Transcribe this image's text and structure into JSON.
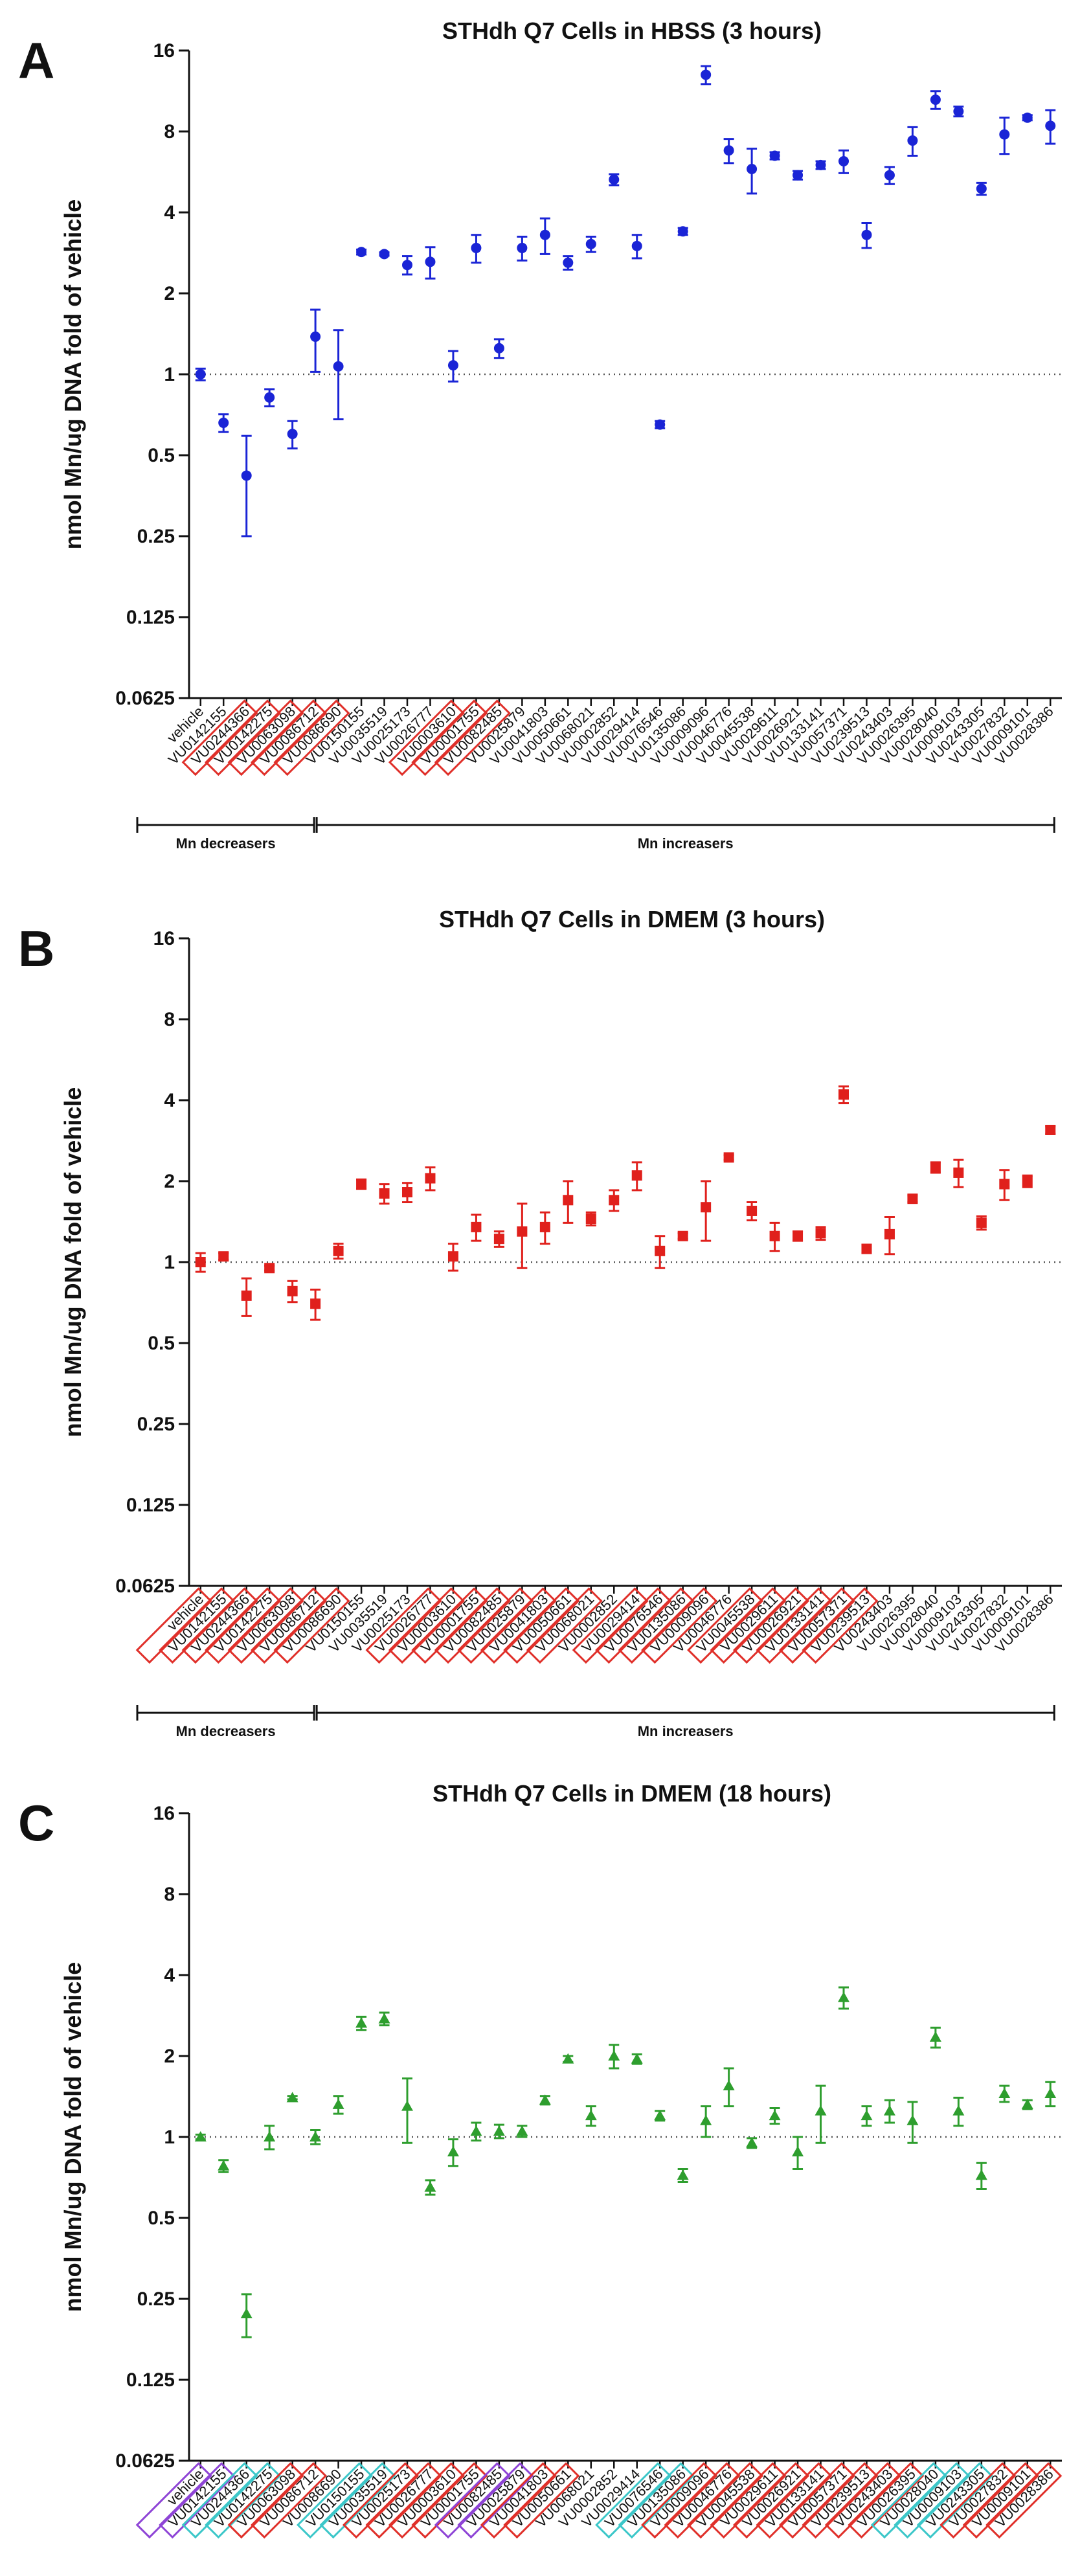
{
  "figure_letters": [
    "A",
    "B",
    "C"
  ],
  "shared": {
    "ylabel": "nmol Mn/ug DNA fold of vehicle",
    "yticks": [
      0.0625,
      0.125,
      0.25,
      0.5,
      1,
      2,
      4,
      8,
      16
    ],
    "ytick_labels": [
      "0.0625",
      "0.125",
      "0.25",
      "0.5",
      "1",
      "2",
      "4",
      "8",
      "16"
    ],
    "categories": [
      "vehicle",
      "VU0142155",
      "VU0244366",
      "VU0142275",
      "VU0063098",
      "VU0086712",
      "VU0086690",
      "VU0150155",
      "VU0035519",
      "VU0025173",
      "VU0026777",
      "VU0003610",
      "VU0001755",
      "VU0082485",
      "VU0025879",
      "VU0041803",
      "VU0050661",
      "VU0068021",
      "VU0002852",
      "VU0029414",
      "VU0076546",
      "VU0135086",
      "VU0009096",
      "VU0046776",
      "VU0045538",
      "VU0029611",
      "VU0026921",
      "VU0133141",
      "VU0057371",
      "VU0239513",
      "VU0243403",
      "VU0026395",
      "VU0028040",
      "VU0009103",
      "VU0243305",
      "VU0027832",
      "VU0009101",
      "VU0028386"
    ],
    "groups": [
      {
        "label": "Mn decreasers",
        "start": 0,
        "end": 5
      },
      {
        "label": "Mn increasers",
        "start": 5,
        "end": 37
      }
    ],
    "reference_line": 1,
    "highlight_colors": {
      "red": "#e0302a",
      "purple": "#8e44d6",
      "cyan": "#3cc7c9"
    }
  },
  "chart_data": [
    {
      "type": "scatter",
      "panel": "A",
      "title": "STHdh Q7 Cells in HBSS (3 hours)",
      "color": "#1a24d6",
      "marker": "circle",
      "yscale": "log2",
      "ylim": [
        0.0625,
        16
      ],
      "values": [
        1.0,
        0.66,
        0.42,
        0.82,
        0.6,
        1.38,
        1.07,
        2.85,
        2.8,
        2.55,
        2.62,
        1.08,
        2.95,
        1.25,
        2.95,
        3.3,
        2.6,
        3.05,
        5.3,
        3.0,
        0.65,
        3.4,
        13.0,
        6.8,
        5.8,
        6.5,
        5.5,
        6.0,
        6.2,
        3.3,
        5.5,
        7.4,
        10.5,
        9.5,
        4.9,
        7.8,
        9.0,
        8.4
      ],
      "err": [
        0.05,
        0.05,
        0.17,
        0.06,
        0.07,
        0.36,
        0.39,
        0.06,
        0.04,
        0.2,
        0.35,
        0.14,
        0.35,
        0.1,
        0.3,
        0.5,
        0.15,
        0.2,
        0.25,
        0.3,
        0.02,
        0.1,
        1.0,
        0.7,
        1.1,
        0.2,
        0.2,
        0.2,
        0.6,
        0.35,
        0.4,
        0.9,
        0.8,
        0.4,
        0.25,
        1.2,
        0.2,
        1.2
      ],
      "highlights": {
        "1": "none",
        "2": "red",
        "3": "red",
        "4": "red",
        "5": "red",
        "6": "red",
        "11": "red",
        "12": "red",
        "13": "red"
      }
    },
    {
      "type": "scatter",
      "panel": "B",
      "title": "STHdh Q7 Cells in DMEM (3 hours)",
      "color": "#e0201c",
      "marker": "square",
      "yscale": "log2",
      "ylim": [
        0.0625,
        16
      ],
      "values": [
        1.0,
        1.05,
        0.75,
        0.95,
        0.78,
        0.7,
        1.1,
        1.95,
        1.8,
        1.82,
        2.05,
        1.05,
        1.35,
        1.22,
        1.3,
        1.35,
        1.7,
        1.45,
        1.7,
        2.1,
        1.1,
        1.25,
        1.6,
        2.45,
        1.55,
        1.25,
        1.25,
        1.28,
        4.2,
        1.12,
        1.27,
        1.72,
        2.25,
        2.15,
        1.4,
        1.95,
        2.0,
        3.1
      ],
      "err": [
        0.08,
        0.03,
        0.12,
        0.02,
        0.07,
        0.09,
        0.07,
        0.08,
        0.15,
        0.15,
        0.2,
        0.12,
        0.15,
        0.08,
        0.35,
        0.18,
        0.3,
        0.08,
        0.15,
        0.25,
        0.15,
        0.03,
        0.4,
        0.05,
        0.12,
        0.15,
        0.05,
        0.07,
        0.3,
        0.04,
        0.2,
        0.05,
        0.1,
        0.25,
        0.08,
        0.25,
        0.1,
        0.1
      ],
      "highlights": {
        "0": "red",
        "1": "red",
        "2": "red",
        "3": "red",
        "4": "red",
        "5": "red",
        "6": "red",
        "10": "red",
        "11": "red",
        "12": "red",
        "13": "red",
        "14": "red",
        "15": "red",
        "16": "red",
        "17": "red",
        "19": "red",
        "20": "red",
        "21": "red",
        "22": "red",
        "24": "red",
        "25": "red",
        "26": "red",
        "27": "red",
        "28": "red",
        "29": "red"
      }
    },
    {
      "type": "scatter",
      "panel": "C",
      "title": "STHdh Q7 Cells in DMEM (18 hours)",
      "color": "#2e9e2e",
      "marker": "triangle",
      "yscale": "log2",
      "ylim": [
        0.0625,
        16
      ],
      "values": [
        1.0,
        0.78,
        0.22,
        1.0,
        1.4,
        1.0,
        1.32,
        2.65,
        2.75,
        1.3,
        0.65,
        0.88,
        1.05,
        1.05,
        1.05,
        1.37,
        1.95,
        1.2,
        2.0,
        1.95,
        1.2,
        0.72,
        1.15,
        1.55,
        0.95,
        1.2,
        0.88,
        1.25,
        3.3,
        1.2,
        1.25,
        1.15,
        2.35,
        1.25,
        0.72,
        1.45,
        1.32,
        1.45
      ],
      "err": [
        0.02,
        0.04,
        0.04,
        0.1,
        0.02,
        0.06,
        0.1,
        0.15,
        0.15,
        0.35,
        0.04,
        0.1,
        0.08,
        0.06,
        0.05,
        0.05,
        0.05,
        0.1,
        0.2,
        0.08,
        0.05,
        0.04,
        0.15,
        0.25,
        0.04,
        0.08,
        0.12,
        0.3,
        0.3,
        0.1,
        0.12,
        0.2,
        0.2,
        0.15,
        0.08,
        0.1,
        0.05,
        0.15
      ],
      "highlights": {
        "0": "purple",
        "1": "purple",
        "2": "cyan",
        "3": "cyan",
        "4": "red",
        "5": "red",
        "7": "cyan",
        "8": "cyan",
        "9": "red",
        "10": "red",
        "11": "red",
        "12": "red",
        "13": "purple",
        "14": "purple",
        "15": "red",
        "16": "red",
        "20": "cyan",
        "21": "cyan",
        "22": "red",
        "23": "red",
        "24": "red",
        "25": "red",
        "26": "red",
        "27": "red",
        "28": "red",
        "29": "red",
        "30": "red",
        "31": "red",
        "32": "cyan",
        "33": "cyan",
        "34": "cyan",
        "35": "red",
        "36": "red",
        "37": "red"
      }
    }
  ]
}
